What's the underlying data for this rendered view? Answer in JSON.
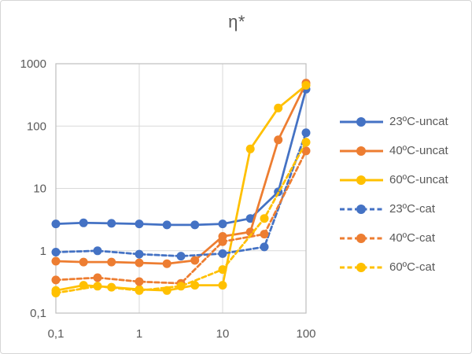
{
  "chart_data": {
    "type": "line",
    "title": "η*",
    "x_scale": "log",
    "y_scale": "log",
    "xlim": [
      0.1,
      100
    ],
    "ylim": [
      0.1,
      1000
    ],
    "grid": true,
    "legend_position": "right",
    "decimal_separator": ",",
    "colors": {
      "grid": "#D9D9D9",
      "frame": "#BFBFBF",
      "text": "#595959",
      "background": "#FFFFFF"
    },
    "x_ticks": [
      {
        "value": 0.1,
        "label": "0,1"
      },
      {
        "value": 1,
        "label": "1"
      },
      {
        "value": 10,
        "label": "10"
      },
      {
        "value": 100,
        "label": "100"
      }
    ],
    "y_ticks": [
      {
        "value": 0.1,
        "label": "0,1"
      },
      {
        "value": 1,
        "label": "1"
      },
      {
        "value": 10,
        "label": "10"
      },
      {
        "value": 100,
        "label": "100"
      },
      {
        "value": 1000,
        "label": "1000"
      }
    ],
    "series": [
      {
        "name": "23ºC-uncat",
        "color": "#4472C4",
        "style": "solid",
        "x": [
          0.1,
          0.215,
          0.464,
          1,
          2.15,
          4.64,
          10,
          21.5,
          46.4,
          100
        ],
        "y": [
          2.7,
          2.8,
          2.75,
          2.7,
          2.6,
          2.6,
          2.7,
          3.3,
          8.8,
          390
        ]
      },
      {
        "name": "40ºC-uncat",
        "color": "#ED7D31",
        "style": "solid",
        "x": [
          0.1,
          0.215,
          0.464,
          1,
          2.15,
          4.64,
          10,
          21.5,
          46.4,
          100
        ],
        "y": [
          0.68,
          0.66,
          0.66,
          0.64,
          0.62,
          0.7,
          1.7,
          2.0,
          60,
          490
        ]
      },
      {
        "name": "60ºC-uncat",
        "color": "#FFC000",
        "style": "solid",
        "x": [
          0.1,
          0.215,
          0.464,
          1,
          2.15,
          4.64,
          10,
          21.5,
          46.4,
          100
        ],
        "y": [
          0.23,
          0.28,
          0.26,
          0.24,
          0.23,
          0.28,
          0.28,
          43,
          195,
          450
        ]
      },
      {
        "name": "23ºC-cat",
        "color": "#4472C4",
        "style": "dashed",
        "x": [
          0.1,
          0.316,
          1,
          3.16,
          10,
          31.6,
          100
        ],
        "y": [
          0.95,
          1.0,
          0.88,
          0.82,
          0.9,
          1.15,
          78
        ]
      },
      {
        "name": "40ºC-cat",
        "color": "#ED7D31",
        "style": "dashed",
        "x": [
          0.1,
          0.316,
          1,
          3.16,
          10,
          31.6,
          100
        ],
        "y": [
          0.34,
          0.37,
          0.32,
          0.3,
          1.4,
          1.85,
          40
        ]
      },
      {
        "name": "60ºC-cat",
        "color": "#FFC000",
        "style": "dashed",
        "x": [
          0.1,
          0.316,
          1,
          3.16,
          10,
          31.6,
          100
        ],
        "y": [
          0.21,
          0.27,
          0.23,
          0.27,
          0.5,
          3.3,
          55
        ]
      }
    ]
  }
}
